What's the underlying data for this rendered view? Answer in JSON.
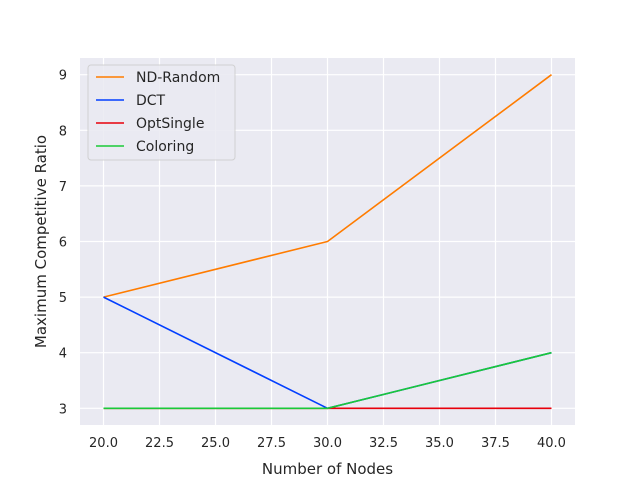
{
  "chart_data": {
    "type": "line",
    "xlabel": "Number of Nodes",
    "ylabel": "Maximum Competitive Ratio",
    "x": [
      20,
      30,
      40
    ],
    "xlim": [
      18.95,
      41.05
    ],
    "ylim": [
      2.7,
      9.3
    ],
    "xticks": [
      "20.0",
      "22.5",
      "25.0",
      "27.5",
      "30.0",
      "32.5",
      "35.0",
      "37.5",
      "40.0"
    ],
    "yticks": [
      "3",
      "4",
      "5",
      "6",
      "7",
      "8",
      "9"
    ],
    "grid": true,
    "legend_position": "top-left",
    "series": [
      {
        "name": "ND-Random",
        "color": "#ff7c00",
        "values": [
          5,
          6,
          9
        ]
      },
      {
        "name": "DCT",
        "color": "#023eff",
        "values": [
          5,
          3,
          4
        ]
      },
      {
        "name": "OptSingle",
        "color": "#e8000b",
        "values": [
          3,
          3,
          3
        ]
      },
      {
        "name": "Coloring",
        "color": "#1ac938",
        "values": [
          3,
          3,
          4
        ]
      }
    ]
  }
}
